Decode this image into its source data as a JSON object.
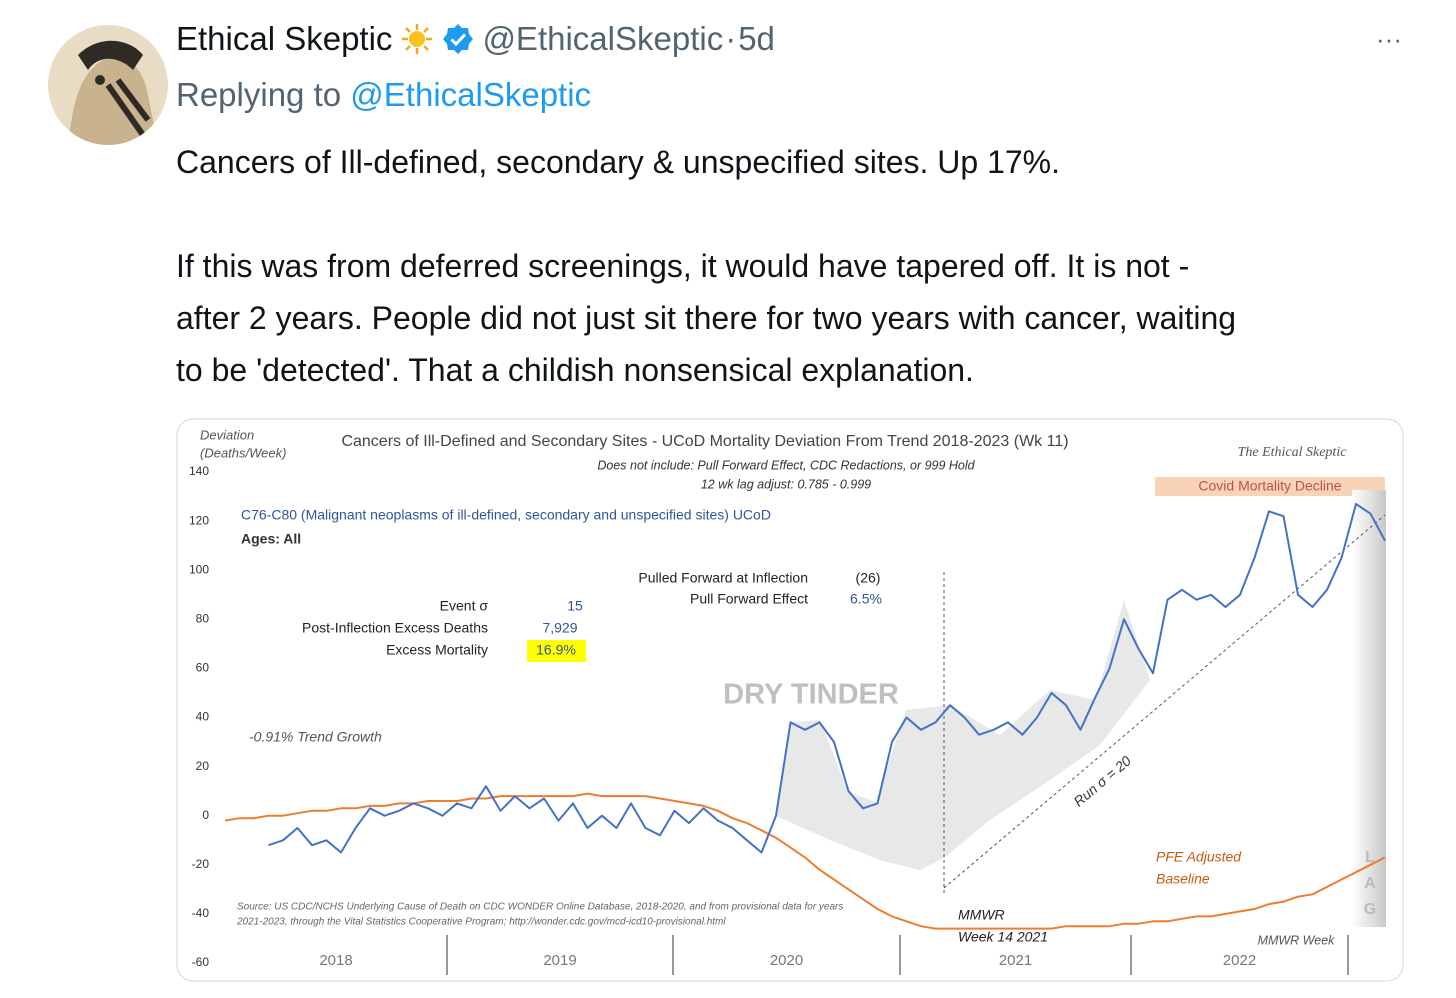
{
  "tweet": {
    "author": "Ethical Skeptic",
    "handle": "@EthicalSkeptic",
    "separator": "·",
    "time": "5d",
    "more": "···",
    "reply_label": "Replying to",
    "reply_handle": "@EthicalSkeptic",
    "paragraphs": [
      [
        "Cancers of Ill-defined, secondary & unspecified sites. Up 17%."
      ],
      [
        "If this was from deferred screenings, it would have tapered off. It is not -",
        "after 2 years. People did not just sit there for two years with cancer, waiting",
        "to be 'detected'. That a childish nonsensical explanation."
      ]
    ]
  },
  "chart_data": {
    "type": "line",
    "title": "Cancers of Ill-Defined  and Secondary Sites - UCoD Mortality Deviation  From Trend  2018-2023 (Wk 11)",
    "subtitle": [
      "Does not include: Pull Forward Effect,  CDC Redactions, or 999 Hold",
      "12 wk lag adjust: 0.785 - 0.999"
    ],
    "y_label": [
      "Deviation",
      "(Deaths/Week)"
    ],
    "x_label": "MMWR Week",
    "watermark": "The Ethical Skeptic",
    "year_labels": [
      "2018",
      "2019",
      "2020",
      "2021",
      "2022"
    ],
    "ylim": [
      -60,
      140
    ],
    "yticks": [
      -60,
      -40,
      -20,
      0,
      20,
      40,
      60,
      80,
      100,
      120,
      140
    ],
    "grid": false,
    "series": [
      {
        "name": "C76-C80 (Malignant neoplasms of ill-defined, secondary and unspecified sites) UCoD",
        "color": "#4472c4",
        "values": [
          null,
          null,
          null,
          -12,
          -10,
          -5,
          -12,
          -10,
          -15,
          -5,
          3,
          0,
          2,
          5,
          3,
          0,
          5,
          3,
          12,
          2,
          8,
          3,
          7,
          -2,
          5,
          -5,
          0,
          -5,
          5,
          -5,
          -8,
          2,
          -3,
          3,
          -2,
          -5,
          -10,
          -15,
          0,
          38,
          35,
          38,
          30,
          10,
          3,
          5,
          30,
          40,
          35,
          38,
          45,
          40,
          33,
          35,
          38,
          33,
          40,
          50,
          45,
          35,
          48,
          60,
          80,
          68,
          58,
          88,
          92,
          88,
          90,
          85,
          90,
          105,
          124,
          122,
          90,
          85,
          92,
          105,
          127,
          123,
          112
        ]
      },
      {
        "name": "PFE Adjusted Baseline",
        "color": "#ed7d31",
        "values": [
          -2,
          -1,
          -1,
          0,
          0,
          1,
          2,
          2,
          3,
          3,
          4,
          4,
          5,
          5,
          6,
          6,
          6,
          7,
          7,
          8,
          8,
          8,
          8,
          8,
          8,
          9,
          8,
          8,
          8,
          8,
          7,
          6,
          5,
          4,
          2,
          -1,
          -3,
          -6,
          -9,
          -13,
          -17,
          -22,
          -26,
          -30,
          -34,
          -38,
          -41,
          -43,
          -45,
          -46,
          -46,
          -46,
          -46,
          -46,
          -46,
          -46,
          -46,
          -46,
          -45,
          -45,
          -45,
          -45,
          -44,
          -44,
          -43,
          -43,
          -42,
          -41,
          -41,
          -40,
          -39,
          -38,
          -36,
          -35,
          -33,
          -32,
          -29,
          -26,
          -23,
          -20,
          -17
        ]
      }
    ],
    "series_label": "C76-C80 (Malignant neoplasms of ill-defined, secondary and unspecified sites) UCoD",
    "ages": "Ages: All",
    "stats": {
      "event_sigma_label": "Event σ",
      "event_sigma": "15",
      "excess_deaths_label": "Post-Inflection Excess Deaths",
      "excess_deaths": "7,929",
      "excess_mortality_label": "Excess Mortality",
      "excess_mortality": "16.9%",
      "pulled_forward_label": "Pulled Forward at Inflection",
      "pulled_forward": "(26)",
      "pull_forward_effect_label": "Pull Forward Effect",
      "pull_forward_effect": "6.5%"
    },
    "annotations": {
      "dry_tinder": "DRY TINDER",
      "trend_growth": "-0.91% Trend Growth",
      "run_sigma": "Run σ = 20",
      "covid_decline": "Covid Mortality Decline",
      "baseline_label": [
        "PFE Adjusted",
        "Baseline"
      ],
      "lag": [
        "L",
        "A",
        "G"
      ],
      "inflection": [
        "MMWR",
        "Week 14 2021"
      ],
      "source": [
        "Source: US CDC/NCHS Underlying Cause of Death on CDC WONDER Online Database, 2018-2020, and from provisional data for years",
        "2021-2023, through the Vital Statistics Cooperative Program; http://wonder.cdc.gov/mcd-icd10-provisional.html"
      ]
    }
  }
}
